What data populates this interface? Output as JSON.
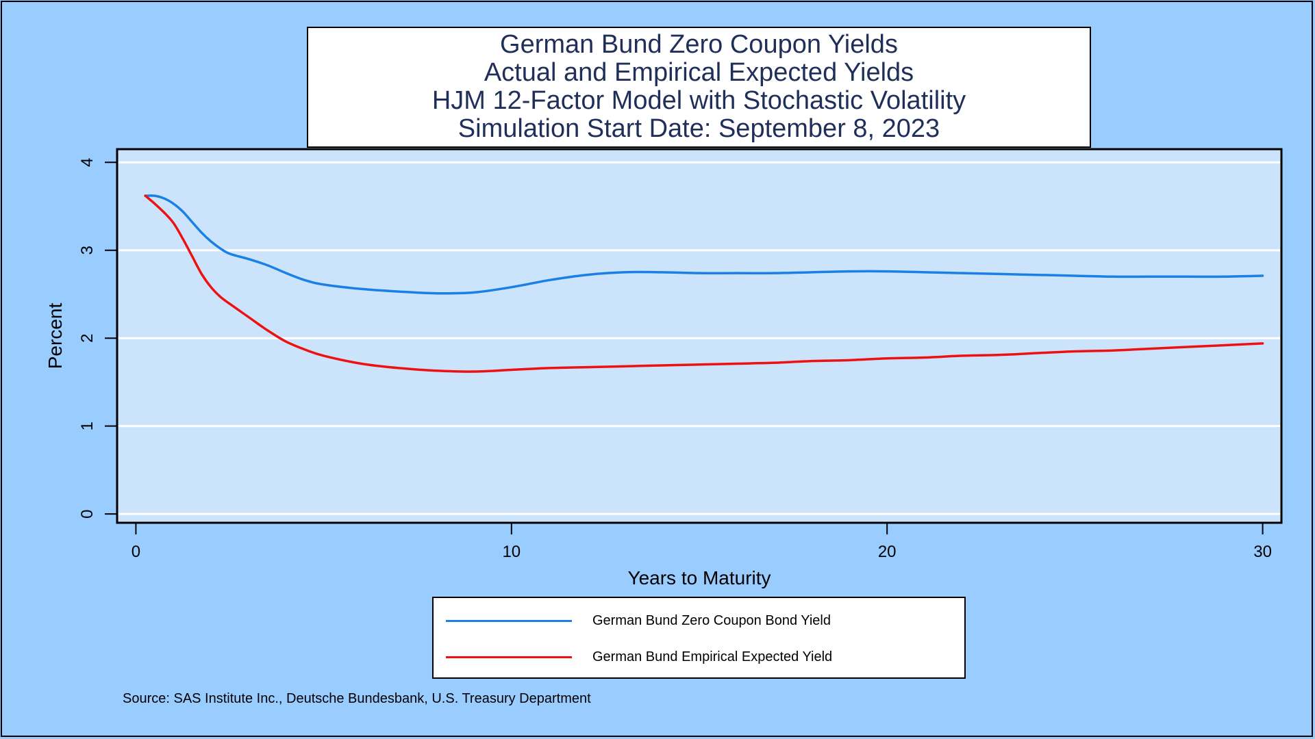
{
  "title_lines": [
    "German Bund Zero Coupon Yields",
    "Actual and Empirical Expected Yields",
    "HJM 12-Factor Model with Stochastic Volatility",
    "Simulation Start Date: September 8, 2023"
  ],
  "source": "Source: SAS Institute Inc., Deutsche Bundesbank, U.S. Treasury Department",
  "colors": {
    "page_background": "#99ccff",
    "plot_background": "#cce4fb",
    "gridline": "#ffffff",
    "title_text": "#1f2f5a",
    "series_actual": "#1a7fe6",
    "series_expected": "#ee1111"
  },
  "chart_data": {
    "type": "line",
    "xlabel": "Years to Maturity",
    "ylabel": "Percent",
    "xlim": [
      -0.5,
      30.5
    ],
    "ylim": [
      -0.1,
      4.15
    ],
    "xticks": [
      0,
      10,
      20,
      30
    ],
    "yticks": [
      0,
      1,
      2,
      3,
      4
    ],
    "grid": "horizontal",
    "legend_position": "bottom",
    "series": [
      {
        "name": "German Bund Zero Coupon Bond Yield",
        "color": "#1a7fe6",
        "x": [
          0.25,
          0.5,
          0.75,
          1,
          1.25,
          1.5,
          1.75,
          2,
          2.25,
          2.5,
          3,
          3.5,
          4,
          4.5,
          5,
          6,
          7,
          8,
          9,
          10,
          11,
          12,
          13,
          14,
          15,
          16,
          17,
          18,
          19,
          20,
          21,
          22,
          23,
          24,
          25,
          26,
          27,
          28,
          29,
          30
        ],
        "y": [
          3.62,
          3.62,
          3.59,
          3.53,
          3.44,
          3.32,
          3.2,
          3.1,
          3.02,
          2.96,
          2.9,
          2.83,
          2.74,
          2.66,
          2.61,
          2.56,
          2.53,
          2.51,
          2.52,
          2.58,
          2.66,
          2.72,
          2.75,
          2.75,
          2.74,
          2.74,
          2.74,
          2.75,
          2.76,
          2.76,
          2.75,
          2.74,
          2.73,
          2.72,
          2.71,
          2.7,
          2.7,
          2.7,
          2.7,
          2.71
        ]
      },
      {
        "name": "German Bund Empirical Expected Yield",
        "color": "#ee1111",
        "x": [
          0.25,
          0.5,
          0.75,
          1,
          1.25,
          1.5,
          1.75,
          2,
          2.25,
          2.5,
          3,
          3.5,
          4,
          4.5,
          5,
          6,
          7,
          8,
          9,
          10,
          11,
          12,
          13,
          14,
          15,
          16,
          17,
          18,
          19,
          20,
          21,
          22,
          23,
          24,
          25,
          26,
          27,
          28,
          29,
          30
        ],
        "y": [
          3.62,
          3.53,
          3.43,
          3.31,
          3.13,
          2.93,
          2.73,
          2.58,
          2.47,
          2.39,
          2.24,
          2.09,
          1.96,
          1.87,
          1.8,
          1.71,
          1.66,
          1.63,
          1.62,
          1.64,
          1.66,
          1.67,
          1.68,
          1.69,
          1.7,
          1.71,
          1.72,
          1.74,
          1.75,
          1.77,
          1.78,
          1.8,
          1.81,
          1.83,
          1.85,
          1.86,
          1.88,
          1.9,
          1.92,
          1.94
        ]
      }
    ]
  }
}
